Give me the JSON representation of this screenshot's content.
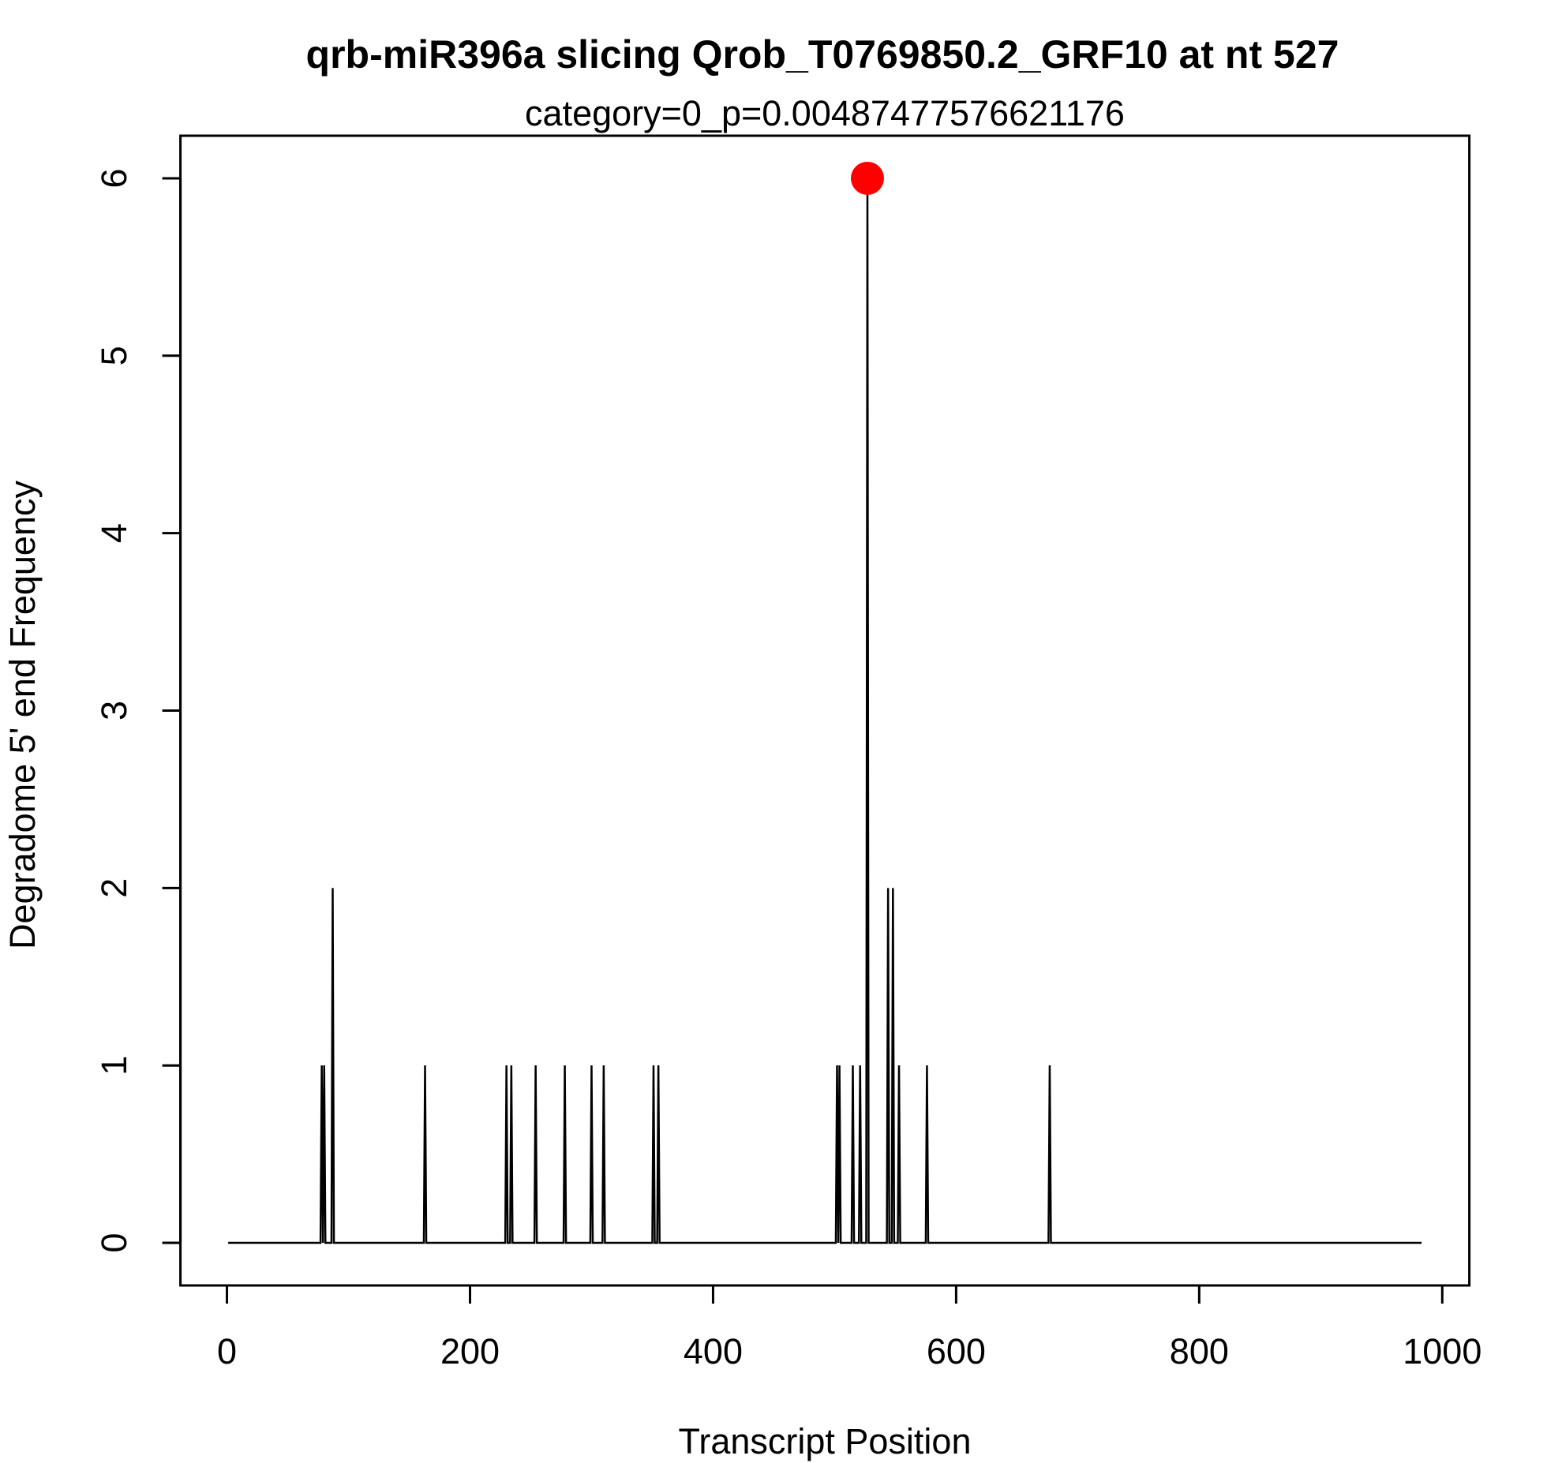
{
  "chart_data": {
    "type": "line",
    "title": "qrb-miR396a slicing Qrob_T0769850.2_GRF10 at nt 527",
    "subtitle": "category=0_p=0.00487477576621176",
    "xlabel": "Transcript Position",
    "ylabel": "Degradome 5' end Frequency",
    "x": [
      1,
      77,
      78,
      79,
      80,
      81,
      86,
      87,
      88,
      162,
      163,
      164,
      229,
      230,
      231,
      233,
      234,
      235,
      253,
      254,
      255,
      277,
      278,
      279,
      299,
      300,
      301,
      309,
      310,
      311,
      350,
      351,
      352,
      354,
      355,
      356,
      501,
      502,
      503,
      504,
      505,
      514,
      515,
      516,
      520,
      521,
      522,
      526,
      527,
      528,
      543,
      544,
      545,
      547,
      548,
      549,
      552,
      553,
      554,
      575,
      576,
      577,
      676,
      677,
      678,
      983
    ],
    "series": [
      {
        "color": "#000000",
        "values": [
          0,
          0,
          1,
          0,
          1,
          0,
          0,
          2,
          0,
          0,
          1,
          0,
          0,
          1,
          0,
          0,
          1,
          0,
          0,
          1,
          0,
          0,
          1,
          0,
          0,
          1,
          0,
          0,
          1,
          0,
          0,
          1,
          0,
          0,
          1,
          0,
          0,
          1,
          0,
          1,
          0,
          0,
          1,
          0,
          0,
          1,
          0,
          0,
          6,
          0,
          0,
          2,
          0,
          0,
          2,
          0,
          0,
          1,
          0,
          0,
          1,
          0,
          0,
          1,
          0,
          0
        ]
      }
    ],
    "highlight": {
      "x": 527,
      "y": 6,
      "color": "#ff0000"
    },
    "xlim": [
      -38.28,
      1022.28
    ],
    "ylim": [
      -0.24,
      6.24
    ],
    "xticks": [
      0,
      200,
      400,
      600,
      800,
      1000
    ],
    "yticks": [
      0,
      1,
      2,
      3,
      4,
      5,
      6
    ]
  }
}
